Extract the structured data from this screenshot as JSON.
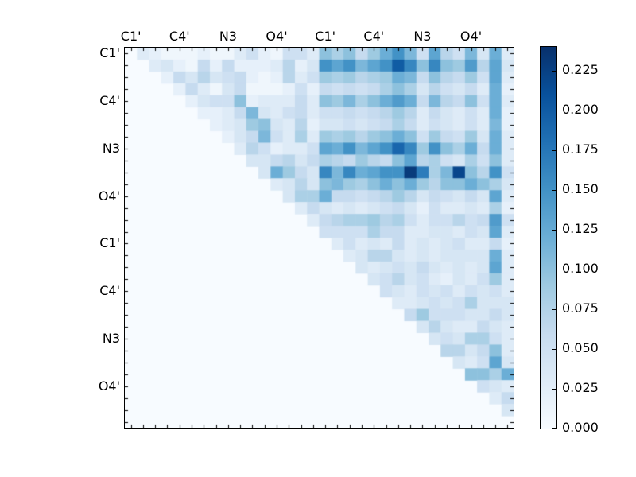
{
  "figure": {
    "background": "#ffffff",
    "plot_background": "#f7fbff",
    "spine_color": "#000000"
  },
  "chart_data": {
    "type": "heatmap",
    "n_rows": 32,
    "n_cols": 32,
    "title": "",
    "xlabel": "",
    "ylabel": "",
    "x_tick_labels": [
      "C1'",
      "C4'",
      "N3",
      "O4'",
      "C1'",
      "C4'",
      "N3",
      "O4'"
    ],
    "x_tick_positions": [
      0,
      4,
      8,
      12,
      16,
      20,
      24,
      28
    ],
    "y_tick_labels": [
      "C1'",
      "C4'",
      "N3",
      "O4'",
      "C1'",
      "C4'",
      "N3",
      "O4'"
    ],
    "y_tick_positions": [
      0,
      4,
      8,
      12,
      16,
      20,
      24,
      28
    ],
    "vmin": 0.0,
    "vmax": 0.24,
    "colormap": "Blues",
    "colormap_stops": [
      [
        0.0,
        "#f7fbff"
      ],
      [
        0.125,
        "#deebf7"
      ],
      [
        0.25,
        "#c6dbef"
      ],
      [
        0.375,
        "#9ecae1"
      ],
      [
        0.5,
        "#6baed6"
      ],
      [
        0.625,
        "#4292c6"
      ],
      [
        0.75,
        "#2171b5"
      ],
      [
        0.875,
        "#08519c"
      ],
      [
        1.0,
        "#08306b"
      ]
    ],
    "colorbar": {
      "tick_labels": [
        "0.000",
        "0.025",
        "0.050",
        "0.075",
        "0.100",
        "0.125",
        "0.150",
        "0.175",
        "0.200",
        "0.225"
      ],
      "tick_values": [
        0.0,
        0.025,
        0.05,
        0.075,
        0.1,
        0.125,
        0.15,
        0.175,
        0.2,
        0.225
      ]
    },
    "matrix": [
      [
        0,
        0.03,
        0.02,
        0.01,
        0.01,
        0.01,
        0.02,
        0.01,
        0.01,
        0.03,
        0.05,
        0.02,
        0.01,
        0.05,
        0.05,
        0.03,
        0.1,
        0.08,
        0.1,
        0.06,
        0.09,
        0.12,
        0.15,
        0.11,
        0.05,
        0.13,
        0.07,
        0.05,
        0.11,
        0.04,
        0.12,
        0.03
      ],
      [
        0,
        0,
        0.03,
        0.04,
        0.02,
        0.01,
        0.06,
        0.02,
        0.06,
        0.02,
        0.02,
        0.02,
        0.03,
        0.07,
        0.02,
        0.04,
        0.15,
        0.13,
        0.15,
        0.11,
        0.13,
        0.15,
        0.2,
        0.16,
        0.1,
        0.16,
        0.1,
        0.09,
        0.14,
        0.07,
        0.13,
        0.04
      ],
      [
        0,
        0,
        0,
        0.02,
        0.06,
        0.04,
        0.07,
        0.04,
        0.05,
        0.06,
        0.02,
        0.01,
        0.02,
        0.07,
        0.03,
        0.05,
        0.09,
        0.08,
        0.09,
        0.07,
        0.08,
        0.09,
        0.12,
        0.11,
        0.06,
        0.1,
        0.07,
        0.06,
        0.09,
        0.05,
        0.13,
        0.03
      ],
      [
        0,
        0,
        0,
        0,
        0.02,
        0.06,
        0.03,
        0.01,
        0.04,
        0.06,
        0.01,
        0.01,
        0.01,
        0.02,
        0.05,
        0.02,
        0.06,
        0.05,
        0.06,
        0.05,
        0.06,
        0.08,
        0.1,
        0.08,
        0.04,
        0.07,
        0.05,
        0.04,
        0.06,
        0.03,
        0.12,
        0.02
      ],
      [
        0,
        0,
        0,
        0,
        0,
        0.02,
        0.04,
        0.05,
        0.05,
        0.1,
        0.02,
        0.03,
        0.03,
        0.03,
        0.06,
        0.03,
        0.1,
        0.09,
        0.11,
        0.08,
        0.1,
        0.12,
        0.14,
        0.12,
        0.06,
        0.11,
        0.07,
        0.06,
        0.1,
        0.05,
        0.12,
        0.03
      ],
      [
        0,
        0,
        0,
        0,
        0,
        0,
        0.02,
        0.02,
        0.03,
        0.06,
        0.11,
        0.04,
        0.03,
        0.05,
        0.06,
        0.03,
        0.05,
        0.05,
        0.06,
        0.05,
        0.06,
        0.07,
        0.09,
        0.07,
        0.03,
        0.06,
        0.04,
        0.03,
        0.05,
        0.03,
        0.12,
        0.02
      ],
      [
        0,
        0,
        0,
        0,
        0,
        0,
        0,
        0.02,
        0.03,
        0.04,
        0.09,
        0.1,
        0.04,
        0.03,
        0.07,
        0.02,
        0.04,
        0.04,
        0.05,
        0.04,
        0.05,
        0.06,
        0.08,
        0.06,
        0.03,
        0.05,
        0.04,
        0.03,
        0.05,
        0.03,
        0.11,
        0.02
      ],
      [
        0,
        0,
        0,
        0,
        0,
        0,
        0,
        0,
        0.02,
        0.04,
        0.06,
        0.11,
        0.05,
        0.03,
        0.08,
        0.03,
        0.09,
        0.08,
        0.09,
        0.07,
        0.09,
        0.1,
        0.12,
        0.1,
        0.05,
        0.09,
        0.06,
        0.05,
        0.09,
        0.04,
        0.12,
        0.03
      ],
      [
        0,
        0,
        0,
        0,
        0,
        0,
        0,
        0,
        0,
        0.03,
        0.07,
        0.05,
        0.02,
        0.03,
        0.03,
        0.05,
        0.13,
        0.12,
        0.15,
        0.11,
        0.13,
        0.15,
        0.19,
        0.16,
        0.09,
        0.15,
        0.1,
        0.08,
        0.12,
        0.06,
        0.12,
        0.03
      ],
      [
        0,
        0,
        0,
        0,
        0,
        0,
        0,
        0,
        0,
        0,
        0.04,
        0.04,
        0.06,
        0.07,
        0.04,
        0.06,
        0.08,
        0.07,
        0.06,
        0.09,
        0.07,
        0.06,
        0.1,
        0.13,
        0.07,
        0.08,
        0.05,
        0.04,
        0.08,
        0.05,
        0.1,
        0.03
      ],
      [
        0,
        0,
        0,
        0,
        0,
        0,
        0,
        0,
        0,
        0,
        0,
        0.04,
        0.12,
        0.09,
        0.06,
        0.04,
        0.16,
        0.11,
        0.16,
        0.12,
        0.13,
        0.15,
        0.15,
        0.23,
        0.17,
        0.08,
        0.11,
        0.22,
        0.1,
        0.07,
        0.15,
        0.05
      ],
      [
        0,
        0,
        0,
        0,
        0,
        0,
        0,
        0,
        0,
        0,
        0,
        0,
        0.03,
        0.04,
        0.07,
        0.04,
        0.1,
        0.11,
        0.09,
        0.08,
        0.1,
        0.12,
        0.1,
        0.12,
        0.09,
        0.07,
        0.1,
        0.1,
        0.12,
        0.1,
        0.08,
        0.04
      ],
      [
        0,
        0,
        0,
        0,
        0,
        0,
        0,
        0,
        0,
        0,
        0,
        0,
        0,
        0.04,
        0.08,
        0.08,
        0.12,
        0.06,
        0.06,
        0.05,
        0.06,
        0.07,
        0.09,
        0.07,
        0.04,
        0.06,
        0.05,
        0.04,
        0.06,
        0.04,
        0.13,
        0.03
      ],
      [
        0,
        0,
        0,
        0,
        0,
        0,
        0,
        0,
        0,
        0,
        0,
        0,
        0,
        0,
        0.03,
        0.06,
        0.04,
        0.03,
        0.04,
        0.03,
        0.04,
        0.05,
        0.06,
        0.04,
        0.02,
        0.05,
        0.03,
        0.03,
        0.04,
        0.03,
        0.08,
        0.02
      ],
      [
        0,
        0,
        0,
        0,
        0,
        0,
        0,
        0,
        0,
        0,
        0,
        0,
        0,
        0,
        0,
        0.03,
        0.06,
        0.07,
        0.08,
        0.08,
        0.09,
        0.07,
        0.08,
        0.05,
        0.03,
        0.05,
        0.05,
        0.07,
        0.05,
        0.06,
        0.14,
        0.05
      ],
      [
        0,
        0,
        0,
        0,
        0,
        0,
        0,
        0,
        0,
        0,
        0,
        0,
        0,
        0,
        0,
        0,
        0.05,
        0.05,
        0.05,
        0.05,
        0.08,
        0.06,
        0.06,
        0.03,
        0.03,
        0.04,
        0.04,
        0.03,
        0.05,
        0.04,
        0.13,
        0.03
      ],
      [
        0,
        0,
        0,
        0,
        0,
        0,
        0,
        0,
        0,
        0,
        0,
        0,
        0,
        0,
        0,
        0,
        0,
        0.03,
        0.05,
        0.03,
        0.04,
        0.03,
        0.06,
        0.03,
        0.04,
        0.03,
        0.04,
        0.05,
        0.03,
        0.03,
        0.06,
        0.02
      ],
      [
        0,
        0,
        0,
        0,
        0,
        0,
        0,
        0,
        0,
        0,
        0,
        0,
        0,
        0,
        0,
        0,
        0,
        0,
        0.03,
        0.04,
        0.07,
        0.07,
        0.04,
        0.03,
        0.04,
        0.03,
        0.04,
        0.04,
        0.04,
        0.04,
        0.12,
        0.03
      ],
      [
        0,
        0,
        0,
        0,
        0,
        0,
        0,
        0,
        0,
        0,
        0,
        0,
        0,
        0,
        0,
        0,
        0,
        0,
        0,
        0.04,
        0.03,
        0.04,
        0.05,
        0.04,
        0.06,
        0.04,
        0.03,
        0.04,
        0.03,
        0.04,
        0.13,
        0.03
      ],
      [
        0,
        0,
        0,
        0,
        0,
        0,
        0,
        0,
        0,
        0,
        0,
        0,
        0,
        0,
        0,
        0,
        0,
        0,
        0,
        0,
        0.04,
        0.05,
        0.07,
        0.04,
        0.05,
        0.03,
        0.02,
        0.04,
        0.03,
        0.05,
        0.09,
        0.03
      ],
      [
        0,
        0,
        0,
        0,
        0,
        0,
        0,
        0,
        0,
        0,
        0,
        0,
        0,
        0,
        0,
        0,
        0,
        0,
        0,
        0,
        0,
        0.05,
        0.04,
        0.03,
        0.05,
        0.04,
        0.05,
        0.03,
        0.05,
        0.04,
        0.05,
        0.03
      ],
      [
        0,
        0,
        0,
        0,
        0,
        0,
        0,
        0,
        0,
        0,
        0,
        0,
        0,
        0,
        0,
        0,
        0,
        0,
        0,
        0,
        0,
        0,
        0.03,
        0.03,
        0.04,
        0.05,
        0.04,
        0.05,
        0.08,
        0.04,
        0.04,
        0.04
      ],
      [
        0,
        0,
        0,
        0,
        0,
        0,
        0,
        0,
        0,
        0,
        0,
        0,
        0,
        0,
        0,
        0,
        0,
        0,
        0,
        0,
        0,
        0,
        0,
        0.06,
        0.09,
        0.05,
        0.05,
        0.05,
        0.04,
        0.04,
        0.06,
        0.04
      ],
      [
        0,
        0,
        0,
        0,
        0,
        0,
        0,
        0,
        0,
        0,
        0,
        0,
        0,
        0,
        0,
        0,
        0,
        0,
        0,
        0,
        0,
        0,
        0,
        0,
        0.04,
        0.07,
        0.04,
        0.03,
        0.03,
        0.06,
        0.04,
        0.03
      ],
      [
        0,
        0,
        0,
        0,
        0,
        0,
        0,
        0,
        0,
        0,
        0,
        0,
        0,
        0,
        0,
        0,
        0,
        0,
        0,
        0,
        0,
        0,
        0,
        0,
        0,
        0.04,
        0.05,
        0.04,
        0.08,
        0.08,
        0.05,
        0.03
      ],
      [
        0,
        0,
        0,
        0,
        0,
        0,
        0,
        0,
        0,
        0,
        0,
        0,
        0,
        0,
        0,
        0,
        0,
        0,
        0,
        0,
        0,
        0,
        0,
        0,
        0,
        0,
        0.07,
        0.07,
        0.04,
        0.06,
        0.1,
        0.03
      ],
      [
        0,
        0,
        0,
        0,
        0,
        0,
        0,
        0,
        0,
        0,
        0,
        0,
        0,
        0,
        0,
        0,
        0,
        0,
        0,
        0,
        0,
        0,
        0,
        0,
        0,
        0,
        0,
        0.04,
        0.03,
        0.05,
        0.13,
        0.04
      ],
      [
        0,
        0,
        0,
        0,
        0,
        0,
        0,
        0,
        0,
        0,
        0,
        0,
        0,
        0,
        0,
        0,
        0,
        0,
        0,
        0,
        0,
        0,
        0,
        0,
        0,
        0,
        0,
        0,
        0.1,
        0.1,
        0.08,
        0.12
      ],
      [
        0,
        0,
        0,
        0,
        0,
        0,
        0,
        0,
        0,
        0,
        0,
        0,
        0,
        0,
        0,
        0,
        0,
        0,
        0,
        0,
        0,
        0,
        0,
        0,
        0,
        0,
        0,
        0,
        0,
        0.05,
        0.04,
        0.03
      ],
      [
        0,
        0,
        0,
        0,
        0,
        0,
        0,
        0,
        0,
        0,
        0,
        0,
        0,
        0,
        0,
        0,
        0,
        0,
        0,
        0,
        0,
        0,
        0,
        0,
        0,
        0,
        0,
        0,
        0,
        0,
        0.03,
        0.06
      ],
      [
        0,
        0,
        0,
        0,
        0,
        0,
        0,
        0,
        0,
        0,
        0,
        0,
        0,
        0,
        0,
        0,
        0,
        0,
        0,
        0,
        0,
        0,
        0,
        0,
        0,
        0,
        0,
        0,
        0,
        0,
        0,
        0.04
      ],
      [
        0,
        0,
        0,
        0,
        0,
        0,
        0,
        0,
        0,
        0,
        0,
        0,
        0,
        0,
        0,
        0,
        0,
        0,
        0,
        0,
        0,
        0,
        0,
        0,
        0,
        0,
        0,
        0,
        0,
        0,
        0,
        0
      ]
    ]
  }
}
